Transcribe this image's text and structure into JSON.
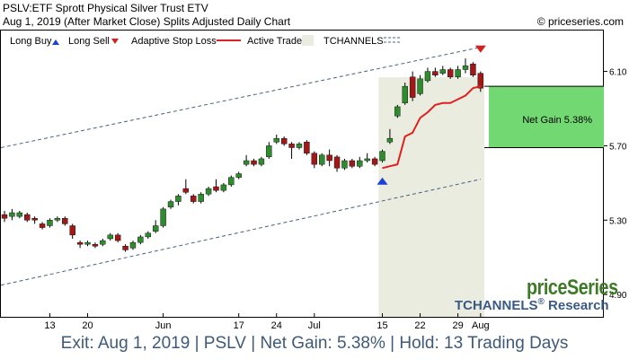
{
  "header": {
    "line1": "PSLV:ETF Sprott Physical Silver Trust ETV",
    "line2": "Aug 1, 2019 (After Market Close)  Splits Adjusted Daily Chart",
    "credit": "© priceseries.com"
  },
  "legend": {
    "long_buy": "Long Buy",
    "long_sell": "Long Sell",
    "adaptive_stop": "Adaptive Stop Loss",
    "active_trade": "Active Trade",
    "tchannels": "TCHANNELS"
  },
  "watermark": {
    "brand": "priceSeries",
    "research_prefix": "TCHANNELS",
    "research_mark": "®",
    "research_suffix": " Research"
  },
  "annotation": {
    "net_gain": "Net Gain 5.38%"
  },
  "footer": {
    "text": "Exit: Aug 1, 2019 | PSLV | Net Gain: 5.38% | Hold: 13 Trading Days"
  },
  "colors": {
    "up_candle": "#2e8b2e",
    "down_candle": "#a01818",
    "stop_line": "#e02020",
    "buy_arrow": "#1a3fd6",
    "sell_arrow": "#d62020",
    "trade_zone": "#e9ecdf",
    "gain_box": "#72d872",
    "channel": "#4a6080"
  },
  "chart_data": {
    "type": "candlestick",
    "ylim": [
      4.78,
      6.32
    ],
    "y_ticks": [
      {
        "v": 4.9,
        "label": "4.90"
      },
      {
        "v": 5.3,
        "label": "5.30"
      },
      {
        "v": 5.7,
        "label": "5.70"
      },
      {
        "v": 6.1,
        "label": "6.10"
      }
    ],
    "x_ticks": [
      {
        "i": 6,
        "label": "13"
      },
      {
        "i": 11,
        "label": "20"
      },
      {
        "i": 21,
        "label": "Jun"
      },
      {
        "i": 31,
        "label": "17"
      },
      {
        "i": 36,
        "label": "24"
      },
      {
        "i": 41,
        "label": "Jul"
      },
      {
        "i": 50,
        "label": "15"
      },
      {
        "i": 55,
        "label": "22"
      },
      {
        "i": 60,
        "label": "29"
      },
      {
        "i": 63,
        "label": "Aug"
      }
    ],
    "n_bars": 64,
    "candles": [
      {
        "o": 5.33,
        "c": 5.31,
        "h": 5.35,
        "l": 5.29
      },
      {
        "o": 5.32,
        "c": 5.34,
        "h": 5.36,
        "l": 5.3
      },
      {
        "o": 5.32,
        "c": 5.34,
        "h": 5.35,
        "l": 5.31
      },
      {
        "o": 5.33,
        "c": 5.3,
        "h": 5.34,
        "l": 5.29
      },
      {
        "o": 5.31,
        "c": 5.3,
        "h": 5.32,
        "l": 5.28
      },
      {
        "o": 5.28,
        "c": 5.26,
        "h": 5.29,
        "l": 5.25
      },
      {
        "o": 5.27,
        "c": 5.3,
        "h": 5.31,
        "l": 5.26
      },
      {
        "o": 5.3,
        "c": 5.31,
        "h": 5.32,
        "l": 5.29
      },
      {
        "o": 5.31,
        "c": 5.28,
        "h": 5.32,
        "l": 5.27
      },
      {
        "o": 5.27,
        "c": 5.22,
        "h": 5.28,
        "l": 5.2
      },
      {
        "o": 5.18,
        "c": 5.17,
        "h": 5.19,
        "l": 5.15
      },
      {
        "o": 5.17,
        "c": 5.18,
        "h": 5.19,
        "l": 5.16
      },
      {
        "o": 5.17,
        "c": 5.16,
        "h": 5.18,
        "l": 5.15
      },
      {
        "o": 5.17,
        "c": 5.19,
        "h": 5.2,
        "l": 5.16
      },
      {
        "o": 5.2,
        "c": 5.22,
        "h": 5.23,
        "l": 5.19
      },
      {
        "o": 5.22,
        "c": 5.19,
        "h": 5.23,
        "l": 5.18
      },
      {
        "o": 5.16,
        "c": 5.14,
        "h": 5.17,
        "l": 5.13
      },
      {
        "o": 5.15,
        "c": 5.18,
        "h": 5.19,
        "l": 5.14
      },
      {
        "o": 5.18,
        "c": 5.21,
        "h": 5.22,
        "l": 5.17
      },
      {
        "o": 5.21,
        "c": 5.23,
        "h": 5.24,
        "l": 5.2
      },
      {
        "o": 5.24,
        "c": 5.27,
        "h": 5.3,
        "l": 5.23
      },
      {
        "o": 5.27,
        "c": 5.36,
        "h": 5.37,
        "l": 5.26
      },
      {
        "o": 5.37,
        "c": 5.4,
        "h": 5.41,
        "l": 5.36
      },
      {
        "o": 5.4,
        "c": 5.43,
        "h": 5.44,
        "l": 5.38
      },
      {
        "o": 5.47,
        "c": 5.45,
        "h": 5.52,
        "l": 5.44
      },
      {
        "o": 5.43,
        "c": 5.4,
        "h": 5.44,
        "l": 5.39
      },
      {
        "o": 5.4,
        "c": 5.44,
        "h": 5.45,
        "l": 5.39
      },
      {
        "o": 5.44,
        "c": 5.47,
        "h": 5.48,
        "l": 5.43
      },
      {
        "o": 5.48,
        "c": 5.46,
        "h": 5.52,
        "l": 5.45
      },
      {
        "o": 5.46,
        "c": 5.49,
        "h": 5.5,
        "l": 5.45
      },
      {
        "o": 5.49,
        "c": 5.53,
        "h": 5.54,
        "l": 5.48
      },
      {
        "o": 5.53,
        "c": 5.55,
        "h": 5.56,
        "l": 5.52
      },
      {
        "o": 5.6,
        "c": 5.62,
        "h": 5.65,
        "l": 5.59
      },
      {
        "o": 5.62,
        "c": 5.6,
        "h": 5.63,
        "l": 5.59
      },
      {
        "o": 5.6,
        "c": 5.63,
        "h": 5.64,
        "l": 5.59
      },
      {
        "o": 5.64,
        "c": 5.7,
        "h": 5.72,
        "l": 5.63
      },
      {
        "o": 5.72,
        "c": 5.74,
        "h": 5.76,
        "l": 5.71
      },
      {
        "o": 5.74,
        "c": 5.71,
        "h": 5.75,
        "l": 5.7
      },
      {
        "o": 5.71,
        "c": 5.69,
        "h": 5.72,
        "l": 5.63
      },
      {
        "o": 5.69,
        "c": 5.71,
        "h": 5.72,
        "l": 5.68
      },
      {
        "o": 5.72,
        "c": 5.66,
        "h": 5.73,
        "l": 5.65
      },
      {
        "o": 5.66,
        "c": 5.6,
        "h": 5.67,
        "l": 5.58
      },
      {
        "o": 5.6,
        "c": 5.65,
        "h": 5.66,
        "l": 5.59
      },
      {
        "o": 5.65,
        "c": 5.62,
        "h": 5.68,
        "l": 5.59
      },
      {
        "o": 5.64,
        "c": 5.58,
        "h": 5.65,
        "l": 5.56
      },
      {
        "o": 5.58,
        "c": 5.62,
        "h": 5.63,
        "l": 5.57
      },
      {
        "o": 5.62,
        "c": 5.59,
        "h": 5.63,
        "l": 5.58
      },
      {
        "o": 5.59,
        "c": 5.62,
        "h": 5.64,
        "l": 5.58
      },
      {
        "o": 5.62,
        "c": 5.63,
        "h": 5.66,
        "l": 5.61
      },
      {
        "o": 5.63,
        "c": 5.6,
        "h": 5.64,
        "l": 5.59
      },
      {
        "o": 5.62,
        "c": 5.67,
        "h": 5.68,
        "l": 5.61
      },
      {
        "o": 5.72,
        "c": 5.74,
        "h": 5.79,
        "l": 5.71
      },
      {
        "o": 5.86,
        "c": 5.91,
        "h": 5.92,
        "l": 5.85
      },
      {
        "o": 5.93,
        "c": 6.02,
        "h": 6.04,
        "l": 5.92
      },
      {
        "o": 6.07,
        "c": 5.96,
        "h": 6.1,
        "l": 5.94
      },
      {
        "o": 5.98,
        "c": 6.06,
        "h": 6.08,
        "l": 5.97
      },
      {
        "o": 6.05,
        "c": 6.1,
        "h": 6.12,
        "l": 6.04
      },
      {
        "o": 6.1,
        "c": 6.08,
        "h": 6.12,
        "l": 6.07
      },
      {
        "o": 6.09,
        "c": 6.11,
        "h": 6.13,
        "l": 6.08
      },
      {
        "o": 6.11,
        "c": 6.07,
        "h": 6.12,
        "l": 6.06
      },
      {
        "o": 6.07,
        "c": 6.11,
        "h": 6.13,
        "l": 6.06
      },
      {
        "o": 6.11,
        "c": 6.13,
        "h": 6.17,
        "l": 6.09
      },
      {
        "o": 6.14,
        "c": 6.08,
        "h": 6.15,
        "l": 6.07
      },
      {
        "o": 6.09,
        "c": 6.01,
        "h": 6.1,
        "l": 5.99
      }
    ],
    "stop_loss": [
      {
        "i": 50,
        "v": 5.58
      },
      {
        "i": 51,
        "v": 5.59
      },
      {
        "i": 52,
        "v": 5.6
      },
      {
        "i": 53,
        "v": 5.75
      },
      {
        "i": 54,
        "v": 5.77
      },
      {
        "i": 55,
        "v": 5.85
      },
      {
        "i": 56,
        "v": 5.88
      },
      {
        "i": 57,
        "v": 5.92
      },
      {
        "i": 58,
        "v": 5.93
      },
      {
        "i": 59,
        "v": 5.93
      },
      {
        "i": 60,
        "v": 5.95
      },
      {
        "i": 61,
        "v": 5.97
      },
      {
        "i": 62,
        "v": 6.01
      },
      {
        "i": 63,
        "v": 6.02
      }
    ],
    "upper_channel": [
      {
        "i": 0,
        "v": 5.69
      },
      {
        "i": 63,
        "v": 6.23
      }
    ],
    "lower_channel": [
      {
        "i": 0,
        "v": 4.95
      },
      {
        "i": 63,
        "v": 5.52
      }
    ],
    "buy_signal": {
      "i": 50,
      "v": 5.51
    },
    "sell_signal": {
      "i": 63,
      "v": 6.22
    },
    "trade_zone": {
      "start": 50,
      "end": 63
    },
    "net_gain_box": {
      "low": 5.69,
      "high": 6.02
    }
  }
}
